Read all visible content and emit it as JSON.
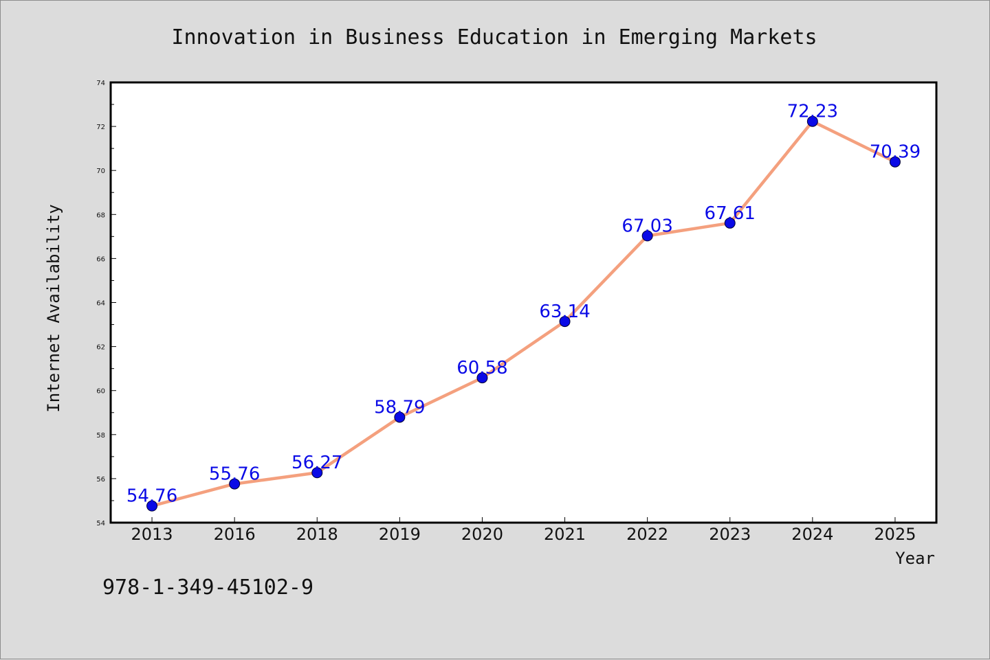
{
  "chart_data": {
    "type": "line",
    "title": "Innovation in Business Education in Emerging Markets",
    "xlabel": "Year",
    "ylabel": "Internet Availability",
    "categories": [
      "2013",
      "2016",
      "2018",
      "2019",
      "2020",
      "2021",
      "2022",
      "2023",
      "2024",
      "2025"
    ],
    "series": [
      {
        "values": [
          54.76,
          55.76,
          56.27,
          58.79,
          60.58,
          63.14,
          67.03,
          67.61,
          72.23,
          70.39
        ],
        "data_labels": [
          "54.76",
          "55.76",
          "56.27",
          "58.79",
          "60.58",
          "63.14",
          "67.03",
          "67.61",
          "72.23",
          "70.39"
        ],
        "line_color": "#f4a07e",
        "marker_color": "#0a0ae6",
        "label_color": "#0a0ae6"
      }
    ],
    "ylim": [
      54,
      74
    ],
    "yticks": [
      "54",
      "56",
      "58",
      "60",
      "62",
      "64",
      "66",
      "68",
      "70",
      "72",
      "74"
    ],
    "grid": false,
    "legend": "none",
    "plot_background": "#ffffff",
    "figure_background": "#dcdcdc"
  },
  "annotation": "978-1-349-45102-9"
}
